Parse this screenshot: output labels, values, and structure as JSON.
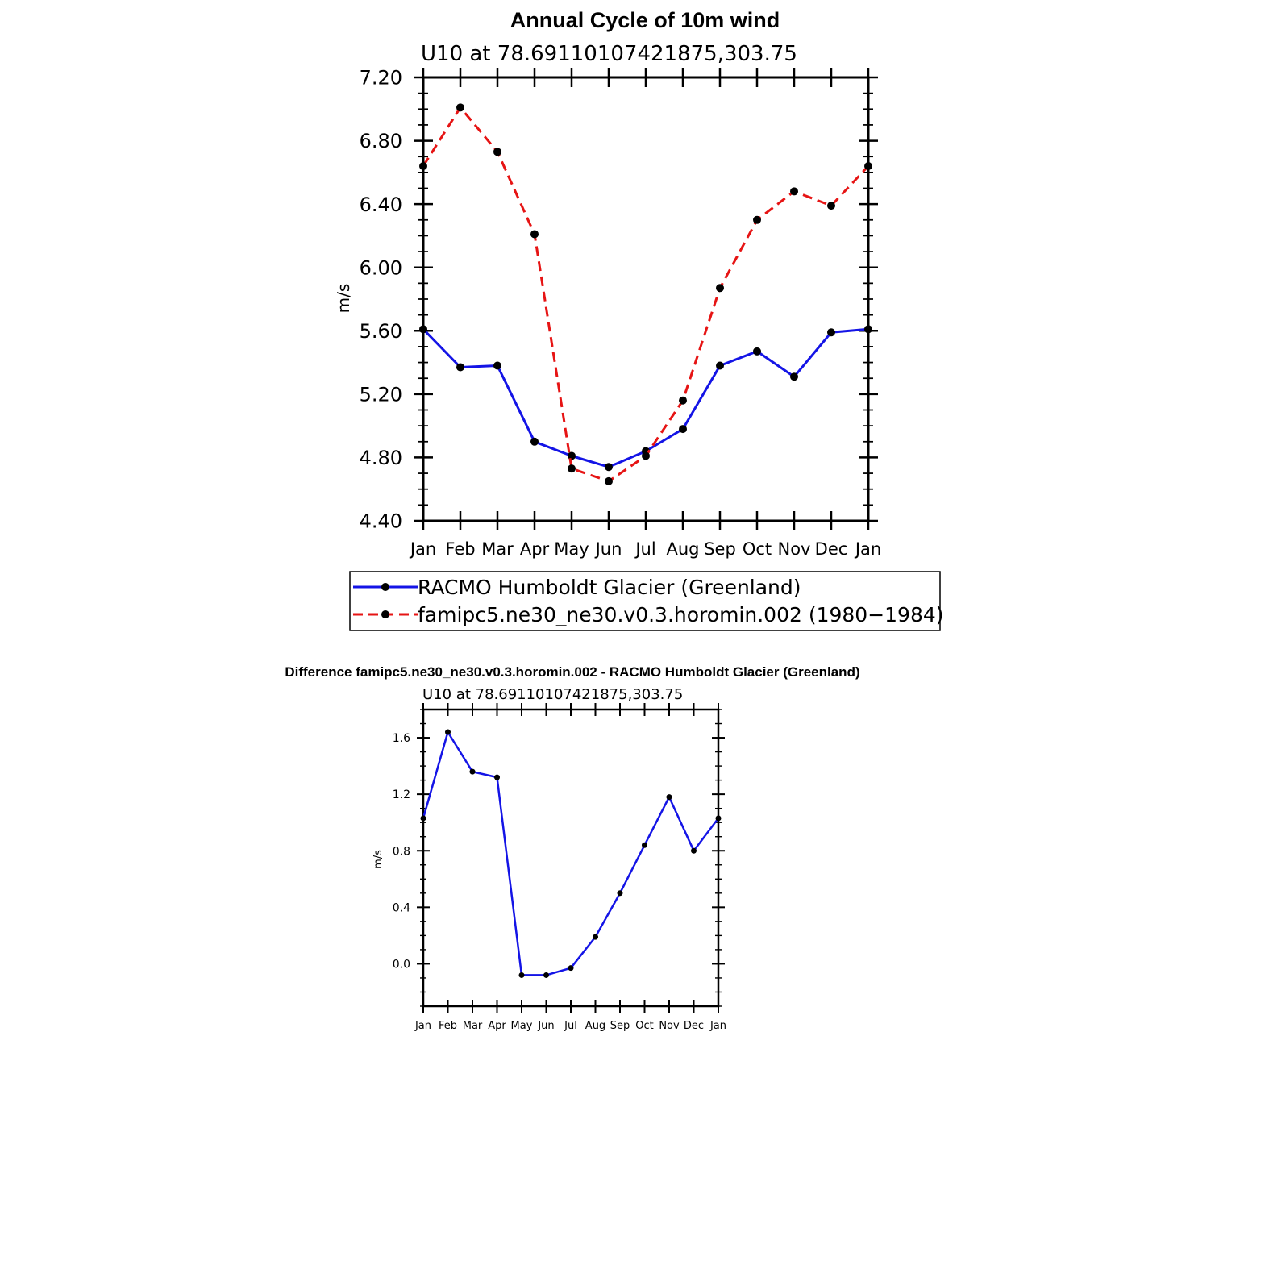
{
  "colors": {
    "blue": "#1414e6",
    "red": "#e61414",
    "black": "#000000"
  },
  "chart_data": [
    {
      "type": "line",
      "title": "Annual Cycle of 10m wind",
      "subtitle": "U10 at 78.69110107421875,303.75",
      "ylabel": "m/s",
      "xlabel": "",
      "ylim": [
        4.4,
        7.2
      ],
      "yticks": [
        "4.40",
        "4.80",
        "5.20",
        "5.60",
        "6.00",
        "6.40",
        "6.80",
        "7.20"
      ],
      "ytick_values": [
        4.4,
        4.8,
        5.2,
        5.6,
        6.0,
        6.4,
        6.8,
        7.2
      ],
      "categories": [
        "Jan",
        "Feb",
        "Mar",
        "Apr",
        "May",
        "Jun",
        "Jul",
        "Aug",
        "Sep",
        "Oct",
        "Nov",
        "Dec",
        "Jan"
      ],
      "grid": false,
      "legend_position": "bottom",
      "series": [
        {
          "name": "RACMO Humboldt Glacier (Greenland)",
          "style": "solid",
          "color": "#1414e6",
          "values": [
            5.61,
            5.37,
            5.38,
            4.9,
            4.81,
            4.74,
            4.84,
            4.98,
            5.38,
            5.47,
            5.31,
            5.59,
            5.61
          ]
        },
        {
          "name": "famipc5.ne30_ne30.v0.3.horomin.002 (1980−1984)",
          "style": "dashed",
          "color": "#e61414",
          "values": [
            6.64,
            7.01,
            6.73,
            6.21,
            4.73,
            4.65,
            4.81,
            5.16,
            5.87,
            6.3,
            6.48,
            6.39,
            6.64
          ]
        }
      ]
    },
    {
      "type": "line",
      "title": "Difference famipc5.ne30_ne30.v0.3.horomin.002 - RACMO Humboldt Glacier (Greenland)",
      "subtitle": "U10 at 78.69110107421875,303.75",
      "ylabel": "m/s",
      "xlabel": "",
      "ylim": [
        -0.3,
        1.8
      ],
      "yticks": [
        "0.0",
        "0.4",
        "0.8",
        "1.2",
        "1.6"
      ],
      "ytick_values": [
        0.0,
        0.4,
        0.8,
        1.2,
        1.6
      ],
      "categories": [
        "Jan",
        "Feb",
        "Mar",
        "Apr",
        "May",
        "Jun",
        "Jul",
        "Aug",
        "Sep",
        "Oct",
        "Nov",
        "Dec",
        "Jan"
      ],
      "grid": false,
      "series": [
        {
          "name": "Difference",
          "style": "solid",
          "color": "#1414e6",
          "values": [
            1.03,
            1.64,
            1.36,
            1.32,
            -0.08,
            -0.08,
            -0.03,
            0.19,
            0.5,
            0.84,
            1.18,
            0.8,
            1.03
          ]
        }
      ]
    }
  ]
}
